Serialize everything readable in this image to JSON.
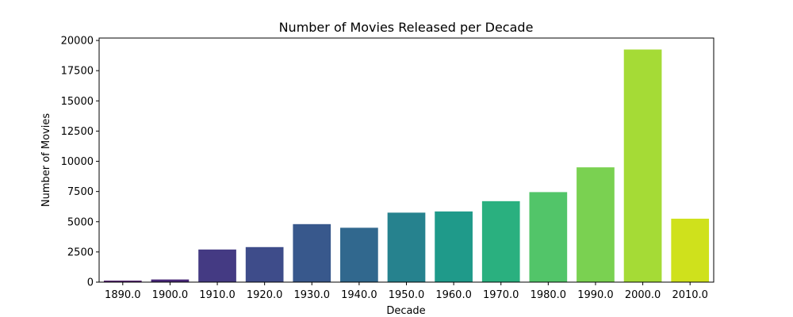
{
  "chart_data": {
    "type": "bar",
    "title": "Number of Movies Released per Decade",
    "xlabel": "Decade",
    "ylabel": "Number of Movies",
    "categories": [
      "1890.0",
      "1900.0",
      "1910.0",
      "1920.0",
      "1930.0",
      "1940.0",
      "1950.0",
      "1960.0",
      "1970.0",
      "1980.0",
      "1990.0",
      "2000.0",
      "2010.0"
    ],
    "values": [
      120,
      220,
      2700,
      2900,
      4800,
      4500,
      5750,
      5850,
      6700,
      7450,
      9500,
      19250,
      5250
    ],
    "colors": [
      "#471365",
      "#482878",
      "#443a83",
      "#3e4c8a",
      "#38588c",
      "#31688e",
      "#26828e",
      "#1f9a8a",
      "#2ab07f",
      "#52c569",
      "#7ad151",
      "#a5db36",
      "#cfe11c"
    ],
    "yticks": [
      0,
      2500,
      5000,
      7500,
      10000,
      12500,
      15000,
      17500,
      20000
    ],
    "ylim": [
      0,
      20200
    ],
    "grid": false,
    "legend": "none"
  }
}
